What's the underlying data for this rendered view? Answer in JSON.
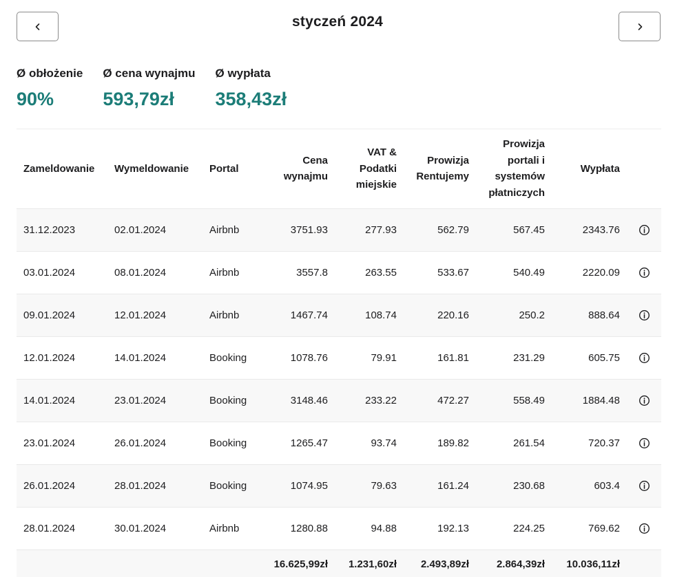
{
  "header": {
    "title": "styczeń 2024",
    "prev_icon": "chevron-left-icon",
    "next_icon": "chevron-right-icon"
  },
  "stats": [
    {
      "label": "Ø obłożenie",
      "value": "90%"
    },
    {
      "label": "Ø cena wynajmu",
      "value": "593,79zł"
    },
    {
      "label": "Ø wypłata",
      "value": "358,43zł"
    }
  ],
  "colors": {
    "accent": "#1c7d78",
    "text": "#1d1d1f",
    "row_alt": "#f8f8f8"
  },
  "table": {
    "columns": [
      [
        "Zameldowanie"
      ],
      [
        "Wymeldowanie"
      ],
      [
        "Portal"
      ],
      [
        "Cena",
        "wynajmu"
      ],
      [
        "VAT &",
        "Podatki",
        "miejskie"
      ],
      [
        "Prowizja",
        "Rentujemy"
      ],
      [
        "Prowizja",
        "portali i",
        "systemów",
        "płatniczych"
      ],
      [
        "Wypłata"
      ]
    ],
    "rows": [
      [
        "31.12.2023",
        "02.01.2024",
        "Airbnb",
        "3751.93",
        "277.93",
        "562.79",
        "567.45",
        "2343.76"
      ],
      [
        "03.01.2024",
        "08.01.2024",
        "Airbnb",
        "3557.8",
        "263.55",
        "533.67",
        "540.49",
        "2220.09"
      ],
      [
        "09.01.2024",
        "12.01.2024",
        "Airbnb",
        "1467.74",
        "108.74",
        "220.16",
        "250.2",
        "888.64"
      ],
      [
        "12.01.2024",
        "14.01.2024",
        "Booking",
        "1078.76",
        "79.91",
        "161.81",
        "231.29",
        "605.75"
      ],
      [
        "14.01.2024",
        "23.01.2024",
        "Booking",
        "3148.46",
        "233.22",
        "472.27",
        "558.49",
        "1884.48"
      ],
      [
        "23.01.2024",
        "26.01.2024",
        "Booking",
        "1265.47",
        "93.74",
        "189.82",
        "261.54",
        "720.37"
      ],
      [
        "26.01.2024",
        "28.01.2024",
        "Booking",
        "1074.95",
        "79.63",
        "161.24",
        "230.68",
        "603.4"
      ],
      [
        "28.01.2024",
        "30.01.2024",
        "Airbnb",
        "1280.88",
        "94.88",
        "192.13",
        "224.25",
        "769.62"
      ]
    ],
    "row_action_icon": "info-icon",
    "totals": [
      "16.625,99zł",
      "1.231,60zł",
      "2.493,89zł",
      "2.864,39zł",
      "10.036,11zł"
    ]
  }
}
